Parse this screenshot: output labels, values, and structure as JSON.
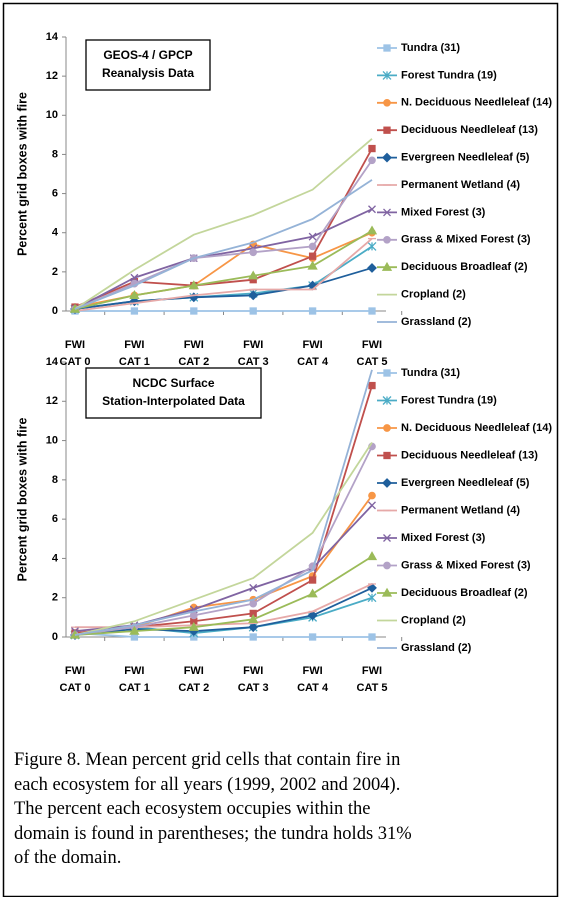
{
  "chart_data": [
    {
      "type": "line",
      "annotation": [
        "GEOS-4 / GPCP",
        "Reanalysis Data"
      ],
      "y_label": "Percent grid boxes with fire",
      "categories": [
        "FWI CAT 0",
        "FWI CAT 1",
        "FWI CAT 2",
        "FWI CAT 3",
        "FWI CAT 4",
        "FWI CAT 5"
      ],
      "ylim": [
        0,
        14
      ],
      "yticks": [
        0,
        2,
        4,
        6,
        8,
        10,
        12,
        14
      ],
      "legend": "right",
      "series": [
        {
          "name": "Tundra (31)",
          "color": "#9dc3e6",
          "marker": "square",
          "values": [
            0,
            0,
            0,
            0,
            0,
            0
          ]
        },
        {
          "name": "Forest Tundra (19)",
          "color": "#4bacc6",
          "marker": "star",
          "values": [
            0.1,
            0.5,
            0.7,
            0.9,
            1.3,
            3.3
          ]
        },
        {
          "name": "N. Deciduous Needleleaf (14)",
          "color": "#f79646",
          "marker": "circle",
          "values": [
            0.2,
            0.8,
            1.3,
            3.4,
            2.7,
            4.0
          ]
        },
        {
          "name": "Deciduous Needleleaf (13)",
          "color": "#c0504d",
          "marker": "square",
          "values": [
            0.2,
            1.5,
            1.3,
            1.6,
            2.8,
            8.3
          ]
        },
        {
          "name": "Evergreen Needleleaf (5)",
          "color": "#1f5f9c",
          "marker": "diamond",
          "values": [
            0.1,
            0.5,
            0.7,
            0.8,
            1.3,
            2.2
          ]
        },
        {
          "name": "Permanent Wetland (4)",
          "color": "#e6a9a8",
          "marker": "dash",
          "values": [
            0.0,
            0.4,
            0.8,
            1.1,
            1.1,
            3.7
          ]
        },
        {
          "name": "Mixed Forest (3)",
          "color": "#8064a2",
          "marker": "x",
          "values": [
            0.1,
            1.7,
            2.7,
            3.2,
            3.8,
            5.2
          ]
        },
        {
          "name": "Grass & Mixed Forest (3)",
          "color": "#b3a2c7",
          "marker": "circle",
          "values": [
            0.1,
            1.4,
            2.7,
            3.0,
            3.3,
            7.7
          ]
        },
        {
          "name": "Deciduous Broadleaf (2)",
          "color": "#9bbb59",
          "marker": "triangle",
          "values": [
            0.1,
            0.8,
            1.3,
            1.8,
            2.3,
            4.1
          ]
        },
        {
          "name": "Cropland (2)",
          "color": "#c3d69b",
          "marker": "none",
          "values": [
            0.1,
            2.1,
            3.9,
            4.9,
            6.2,
            8.8
          ]
        },
        {
          "name": "Grassland (2)",
          "color": "#95b3d7",
          "marker": "none",
          "values": [
            0.1,
            1.3,
            2.7,
            3.5,
            4.7,
            6.7
          ]
        }
      ]
    },
    {
      "type": "line",
      "annotation": [
        "NCDC Surface",
        "Station-Interpolated Data"
      ],
      "y_label": "Percent grid boxes with fire",
      "categories": [
        "FWI CAT 0",
        "FWI CAT 1",
        "FWI CAT 2",
        "FWI CAT 3",
        "FWI CAT 4",
        "FWI CAT 5"
      ],
      "ylim": [
        0,
        14
      ],
      "yticks": [
        0,
        2,
        4,
        6,
        8,
        10,
        12,
        14
      ],
      "legend": "right",
      "series": [
        {
          "name": "Tundra (31)",
          "color": "#9dc3e6",
          "marker": "square",
          "values": [
            0.2,
            0,
            0,
            0,
            0,
            0
          ]
        },
        {
          "name": "Forest Tundra (19)",
          "color": "#4bacc6",
          "marker": "star",
          "values": [
            0.1,
            0.5,
            0.2,
            0.5,
            1.0,
            2.0
          ]
        },
        {
          "name": "N. Deciduous Needleleaf (14)",
          "color": "#f79646",
          "marker": "circle",
          "values": [
            0.2,
            0.5,
            1.5,
            1.9,
            3.1,
            7.2
          ]
        },
        {
          "name": "Deciduous Needleleaf (13)",
          "color": "#c0504d",
          "marker": "square",
          "values": [
            0.2,
            0.5,
            0.8,
            1.2,
            2.9,
            12.8
          ]
        },
        {
          "name": "Evergreen Needleleaf (5)",
          "color": "#1f5f9c",
          "marker": "diamond",
          "values": [
            0.1,
            0.4,
            0.3,
            0.5,
            1.1,
            2.5
          ]
        },
        {
          "name": "Permanent Wetland (4)",
          "color": "#e6a9a8",
          "marker": "dash",
          "values": [
            0.5,
            0.5,
            0.6,
            0.7,
            1.3,
            2.7
          ]
        },
        {
          "name": "Mixed Forest (3)",
          "color": "#8064a2",
          "marker": "x",
          "values": [
            0.3,
            0.6,
            1.4,
            2.5,
            3.5,
            6.7
          ]
        },
        {
          "name": "Grass & Mixed Forest (3)",
          "color": "#b3a2c7",
          "marker": "circle",
          "values": [
            0.1,
            0.5,
            1.1,
            1.7,
            3.6,
            9.7
          ]
        },
        {
          "name": "Deciduous Broadleaf (2)",
          "color": "#9bbb59",
          "marker": "triangle",
          "values": [
            0.1,
            0.3,
            0.5,
            0.9,
            2.2,
            4.1
          ]
        },
        {
          "name": "Cropland (2)",
          "color": "#c3d69b",
          "marker": "none",
          "values": [
            0.1,
            0.8,
            1.9,
            3.0,
            5.3,
            9.9
          ]
        },
        {
          "name": "Grassland (2)",
          "color": "#95b3d7",
          "marker": "none",
          "values": [
            0.1,
            0.6,
            1.3,
            1.9,
            3.4,
            13.6
          ]
        }
      ]
    }
  ],
  "caption": [
    "Figure 8. Mean percent grid cells that contain fire in",
    "each ecosystem for all years (1999, 2002 and 2004).",
    "The percent each ecosystem occupies within the",
    "domain is found in parentheses; the tundra holds 31%",
    "of the domain."
  ]
}
